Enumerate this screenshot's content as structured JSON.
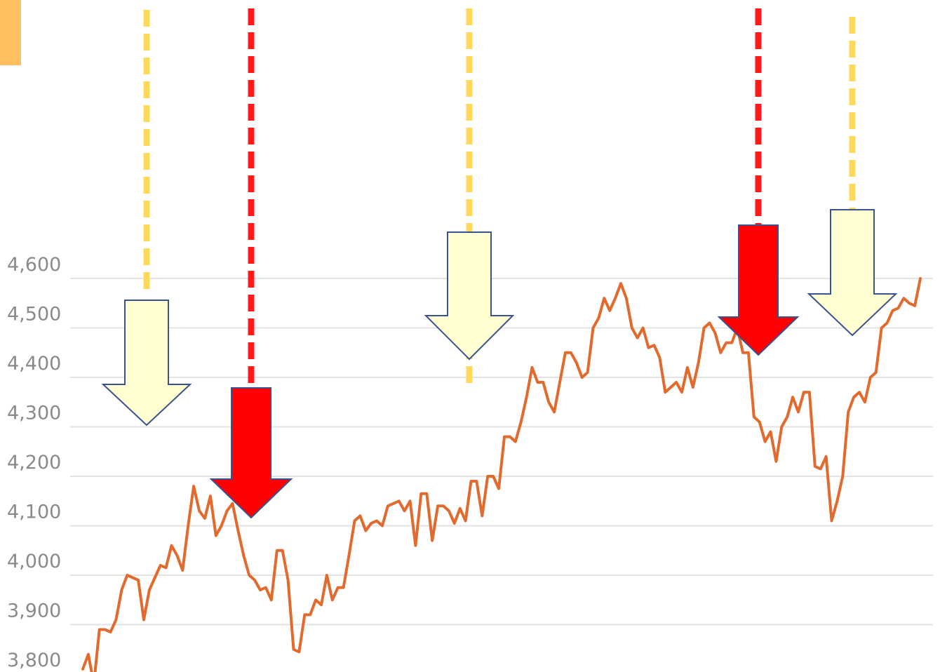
{
  "colors": {
    "line": "#E26A2C",
    "grid": "#E3E3E3",
    "tick_text": "#8A8A8A",
    "corner_tab": "#FFBF5E",
    "yellow_dash": "#FFD95A",
    "red_dash": "#FF1A1A",
    "yellow_arrow_fill": "#FFFFD2",
    "red_arrow_fill": "#FF0000",
    "arrow_outline": "#3A5290"
  },
  "chart_data": {
    "type": "line",
    "title": "",
    "xlabel": "",
    "ylabel": "",
    "ylim": [
      3780,
      4620
    ],
    "y_ticks": [
      3800,
      3900,
      4000,
      4100,
      4200,
      4300,
      4400,
      4500,
      4600
    ],
    "y_tick_labels": [
      "3,800",
      "3,900",
      "4,000",
      "4,100",
      "4,200",
      "4,300",
      "4,400",
      "4,500",
      "4,600"
    ],
    "grid": true,
    "legend": "none",
    "series": [
      {
        "values": [
          3810,
          3840,
          3780,
          3890,
          3890,
          3885,
          3910,
          3970,
          4000,
          3995,
          3990,
          3910,
          3970,
          3995,
          4020,
          4015,
          4060,
          4040,
          4010,
          4100,
          4180,
          4130,
          4115,
          4160,
          4080,
          4100,
          4130,
          4145,
          4090,
          4040,
          4000,
          3990,
          3970,
          3975,
          3950,
          4050,
          4050,
          3990,
          3850,
          3845,
          3920,
          3920,
          3950,
          3940,
          4000,
          3950,
          3975,
          3975,
          4040,
          4110,
          4120,
          4090,
          4105,
          4110,
          4100,
          4140,
          4145,
          4150,
          4130,
          4150,
          4060,
          4165,
          4165,
          4070,
          4140,
          4140,
          4130,
          4105,
          4135,
          4110,
          4190,
          4190,
          4120,
          4200,
          4200,
          4175,
          4280,
          4280,
          4270,
          4310,
          4360,
          4420,
          4390,
          4390,
          4350,
          4330,
          4390,
          4450,
          4450,
          4430,
          4400,
          4410,
          4500,
          4520,
          4560,
          4535,
          4560,
          4590,
          4560,
          4500,
          4480,
          4500,
          4460,
          4465,
          4440,
          4370,
          4380,
          4390,
          4370,
          4420,
          4380,
          4430,
          4500,
          4510,
          4490,
          4450,
          4470,
          4470,
          4500,
          4450,
          4450,
          4320,
          4310,
          4270,
          4290,
          4230,
          4300,
          4320,
          4360,
          4330,
          4370,
          4370,
          4220,
          4215,
          4240,
          4110,
          4150,
          4200,
          4330,
          4360,
          4370,
          4350,
          4400,
          4410,
          4500,
          4510,
          4535,
          4540,
          4560,
          4550,
          4545,
          4600
        ]
      }
    ],
    "annotations": [
      {
        "kind": "down-arrow",
        "color": "light-yellow",
        "dashed_guide": "yellow"
      },
      {
        "kind": "down-arrow",
        "color": "red",
        "dashed_guide": "red"
      },
      {
        "kind": "down-arrow",
        "color": "light-yellow",
        "dashed_guide": "yellow"
      },
      {
        "kind": "down-arrow",
        "color": "red",
        "dashed_guide": "red"
      },
      {
        "kind": "down-arrow",
        "color": "light-yellow",
        "dashed_guide": "yellow"
      }
    ]
  }
}
